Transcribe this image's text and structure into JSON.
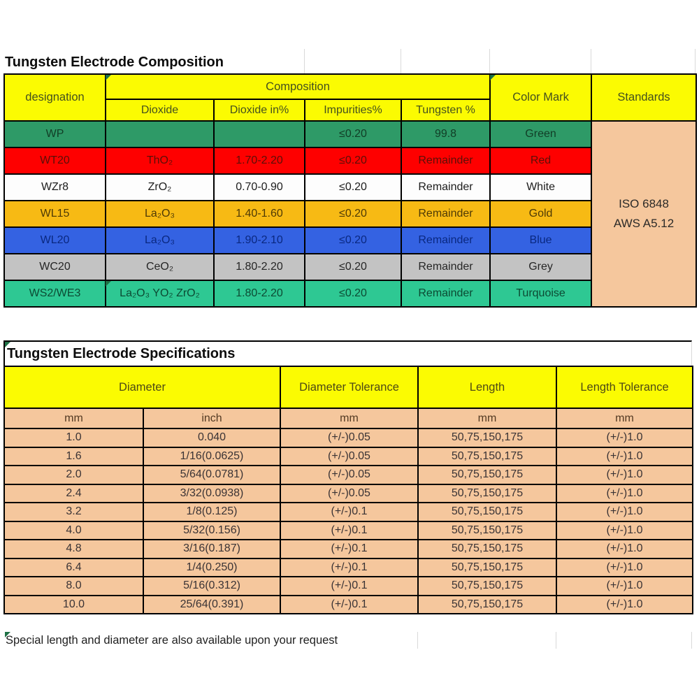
{
  "titles": {
    "composition": "Tungsten Electrode Composition",
    "specifications": "Tungsten Electrode Specifications"
  },
  "footer_note": "Special length and diameter are also available upon your request",
  "colors": {
    "header_yellow": "#FBFB02",
    "peach": "#F5C79D",
    "border": "#000000",
    "flag_green": "#1E7145",
    "gridline": "#D9D9D9"
  },
  "composition": {
    "headers": {
      "designation": "designation",
      "composition": "Composition",
      "dioxide": "Dioxide",
      "dioxide_in": "Dioxide in%",
      "impurities": "Impurities%",
      "tungsten": "Tungsten %",
      "color_mark": "Color Mark",
      "standards": "Standards"
    },
    "standards_lines": [
      "ISO 6848",
      "AWS A5.12"
    ],
    "rows": [
      {
        "designation": "WP",
        "dioxide": "",
        "dioxide_in": "",
        "impurities": "≤0.20",
        "tungsten": "99.8",
        "color": "Green",
        "bg": "#2E9A67",
        "fg": "#113D26"
      },
      {
        "designation": "WT20",
        "dioxide": "ThO₂",
        "dioxide_in": "1.70-2.20",
        "impurities": "≤0.20",
        "tungsten": "Remainder",
        "color": "Red",
        "bg": "#FE0000",
        "fg": "#5A1008"
      },
      {
        "designation": "WZr8",
        "dioxide": "ZrO₂",
        "dioxide_in": "0.70-0.90",
        "impurities": "≤0.20",
        "tungsten": "Remainder",
        "color": "White",
        "bg": "#FDFDFD",
        "fg": "#1C1C1C"
      },
      {
        "designation": "WL15",
        "dioxide": "La₂O₃",
        "dioxide_in": "1.40-1.60",
        "impurities": "≤0.20",
        "tungsten": "Remainder",
        "color": "Gold",
        "bg": "#F7BA14",
        "fg": "#4E3A06"
      },
      {
        "designation": "WL20",
        "dioxide": "La₂O₃",
        "dioxide_in": "1.90-2.10",
        "impurities": "≤0.20",
        "tungsten": "Remainder",
        "color": "Blue",
        "bg": "#3462E2",
        "fg": "#0A2880"
      },
      {
        "designation": "WC20",
        "dioxide": "CeO₂",
        "dioxide_in": "1.80-2.20",
        "impurities": "≤0.20",
        "tungsten": "Remainder",
        "color": "Grey",
        "bg": "#C3C3C3",
        "fg": "#262626"
      },
      {
        "designation": "WS2/WE3",
        "dioxide": "La₂O₃ YO₂ ZrO₂",
        "dioxide_in": "1.80-2.20",
        "impurities": "≤0.20",
        "tungsten": "Remainder",
        "color": "Turquoise",
        "bg": "#2EC893",
        "fg": "#0C4A33"
      }
    ]
  },
  "specs": {
    "headers": {
      "diameter": "Diameter",
      "diameter_tolerance": "Diameter Tolerance",
      "length": "Length",
      "length_tolerance": "Length Tolerance"
    },
    "units": {
      "mm": "mm",
      "inch": "inch",
      "dia_tol": "mm",
      "length": "mm",
      "len_tol": "mm"
    },
    "rows": [
      {
        "mm": "1.0",
        "inch": "0.040",
        "dia_tol": "(+/-)0.05",
        "length": "50,75,150,175",
        "len_tol": "(+/-)1.0"
      },
      {
        "mm": "1.6",
        "inch": "1/16(0.0625)",
        "dia_tol": "(+/-)0.05",
        "length": "50,75,150,175",
        "len_tol": "(+/-)1.0"
      },
      {
        "mm": "2.0",
        "inch": "5/64(0.0781)",
        "dia_tol": "(+/-)0.05",
        "length": "50,75,150,175",
        "len_tol": "(+/-)1.0"
      },
      {
        "mm": "2.4",
        "inch": "3/32(0.0938)",
        "dia_tol": "(+/-)0.05",
        "length": "50,75,150,175",
        "len_tol": "(+/-)1.0"
      },
      {
        "mm": "3.2",
        "inch": "1/8(0.125)",
        "dia_tol": "(+/-)0.1",
        "length": "50,75,150,175",
        "len_tol": "(+/-)1.0"
      },
      {
        "mm": "4.0",
        "inch": "5/32(0.156)",
        "dia_tol": "(+/-)0.1",
        "length": "50,75,150,175",
        "len_tol": "(+/-)1.0"
      },
      {
        "mm": "4.8",
        "inch": "3/16(0.187)",
        "dia_tol": "(+/-)0.1",
        "length": "50,75,150,175",
        "len_tol": "(+/-)1.0"
      },
      {
        "mm": "6.4",
        "inch": "1/4(0.250)",
        "dia_tol": "(+/-)0.1",
        "length": "50,75,150,175",
        "len_tol": "(+/-)1.0"
      },
      {
        "mm": "8.0",
        "inch": "5/16(0.312)",
        "dia_tol": "(+/-)0.1",
        "length": "50,75,150,175",
        "len_tol": "(+/-)1.0"
      },
      {
        "mm": "10.0",
        "inch": "25/64(0.391)",
        "dia_tol": "(+/-)0.1",
        "length": "50,75,150,175",
        "len_tol": "(+/-)1.0"
      }
    ]
  }
}
